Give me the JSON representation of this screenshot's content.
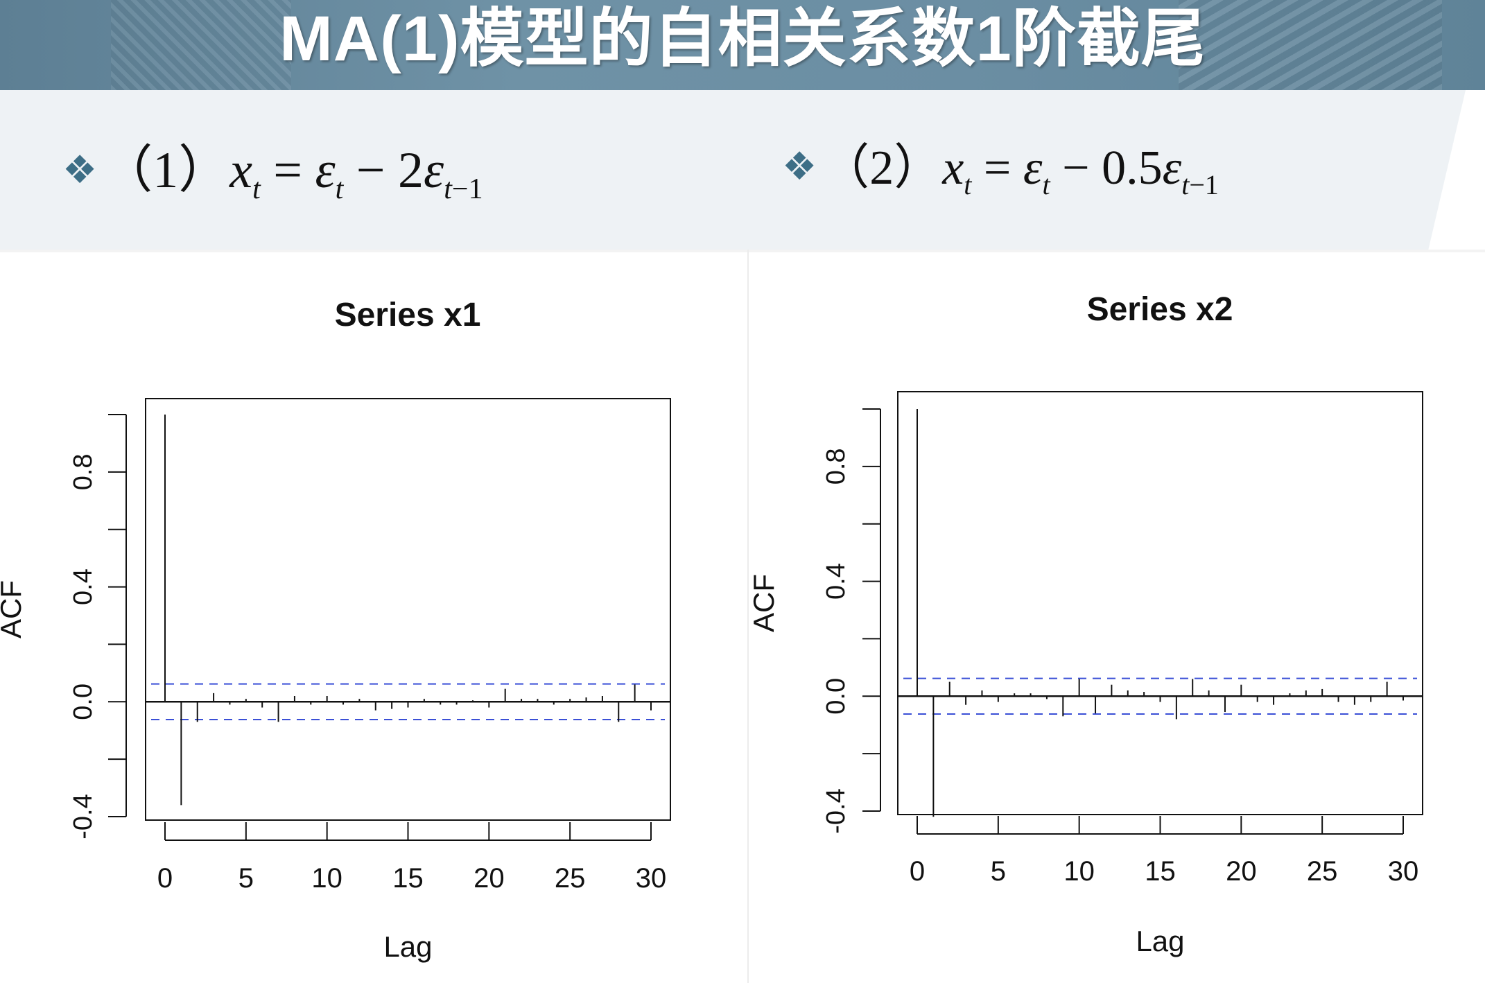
{
  "slide": {
    "title": "MA(1)模型的自相关系数1阶截尾",
    "formula1": {
      "bullet": "❖",
      "label": "（1）",
      "expr": "x_t = ε_t − 2ε_{t−1}"
    },
    "formula2": {
      "bullet": "❖",
      "label": "（2）",
      "expr": "x_t = ε_t − 0.5ε_{t−1}"
    }
  },
  "chart_data": [
    {
      "type": "bar",
      "title": "Series  x1",
      "xlabel": "Lag",
      "ylabel": "ACF",
      "xlim": [
        0,
        30
      ],
      "ylim": [
        -0.4,
        1.0
      ],
      "xticks": [
        "0",
        "5",
        "10",
        "15",
        "20",
        "25",
        "30"
      ],
      "yticks": [
        "-0.4",
        "0.0",
        "0.4",
        "0.8"
      ],
      "ci_band": [
        -0.062,
        0.062
      ],
      "lags": [
        0,
        1,
        2,
        3,
        4,
        5,
        6,
        7,
        8,
        9,
        10,
        11,
        12,
        13,
        14,
        15,
        16,
        17,
        18,
        19,
        20,
        21,
        22,
        23,
        24,
        25,
        26,
        27,
        28,
        29,
        30
      ],
      "values": [
        1.0,
        -0.36,
        -0.07,
        0.03,
        -0.01,
        0.01,
        -0.02,
        -0.07,
        0.02,
        -0.01,
        0.02,
        -0.01,
        0.01,
        -0.03,
        -0.025,
        -0.02,
        0.01,
        -0.01,
        -0.01,
        0.005,
        -0.02,
        0.045,
        0.01,
        0.01,
        -0.01,
        0.01,
        0.015,
        0.02,
        -0.07,
        0.06,
        -0.03
      ]
    },
    {
      "type": "bar",
      "title": "Series  x2",
      "xlabel": "Lag",
      "ylabel": "ACF",
      "xlim": [
        0,
        30
      ],
      "ylim": [
        -0.4,
        1.0
      ],
      "xticks": [
        "0",
        "5",
        "10",
        "15",
        "20",
        "25",
        "30"
      ],
      "yticks": [
        "-0.4",
        "0.0",
        "0.4",
        "0.8"
      ],
      "ci_band": [
        -0.062,
        0.062
      ],
      "lags": [
        0,
        1,
        2,
        3,
        4,
        5,
        6,
        7,
        8,
        9,
        10,
        11,
        12,
        13,
        14,
        15,
        16,
        17,
        18,
        19,
        20,
        21,
        22,
        23,
        24,
        25,
        26,
        27,
        28,
        29,
        30
      ],
      "values": [
        1.0,
        -0.42,
        0.05,
        -0.03,
        0.02,
        -0.02,
        0.01,
        0.01,
        -0.01,
        -0.07,
        0.06,
        -0.06,
        0.04,
        0.02,
        0.015,
        -0.02,
        -0.08,
        0.06,
        0.02,
        -0.055,
        0.04,
        -0.02,
        -0.03,
        0.01,
        0.02,
        0.025,
        -0.02,
        -0.03,
        -0.02,
        0.05,
        -0.015
      ]
    }
  ]
}
